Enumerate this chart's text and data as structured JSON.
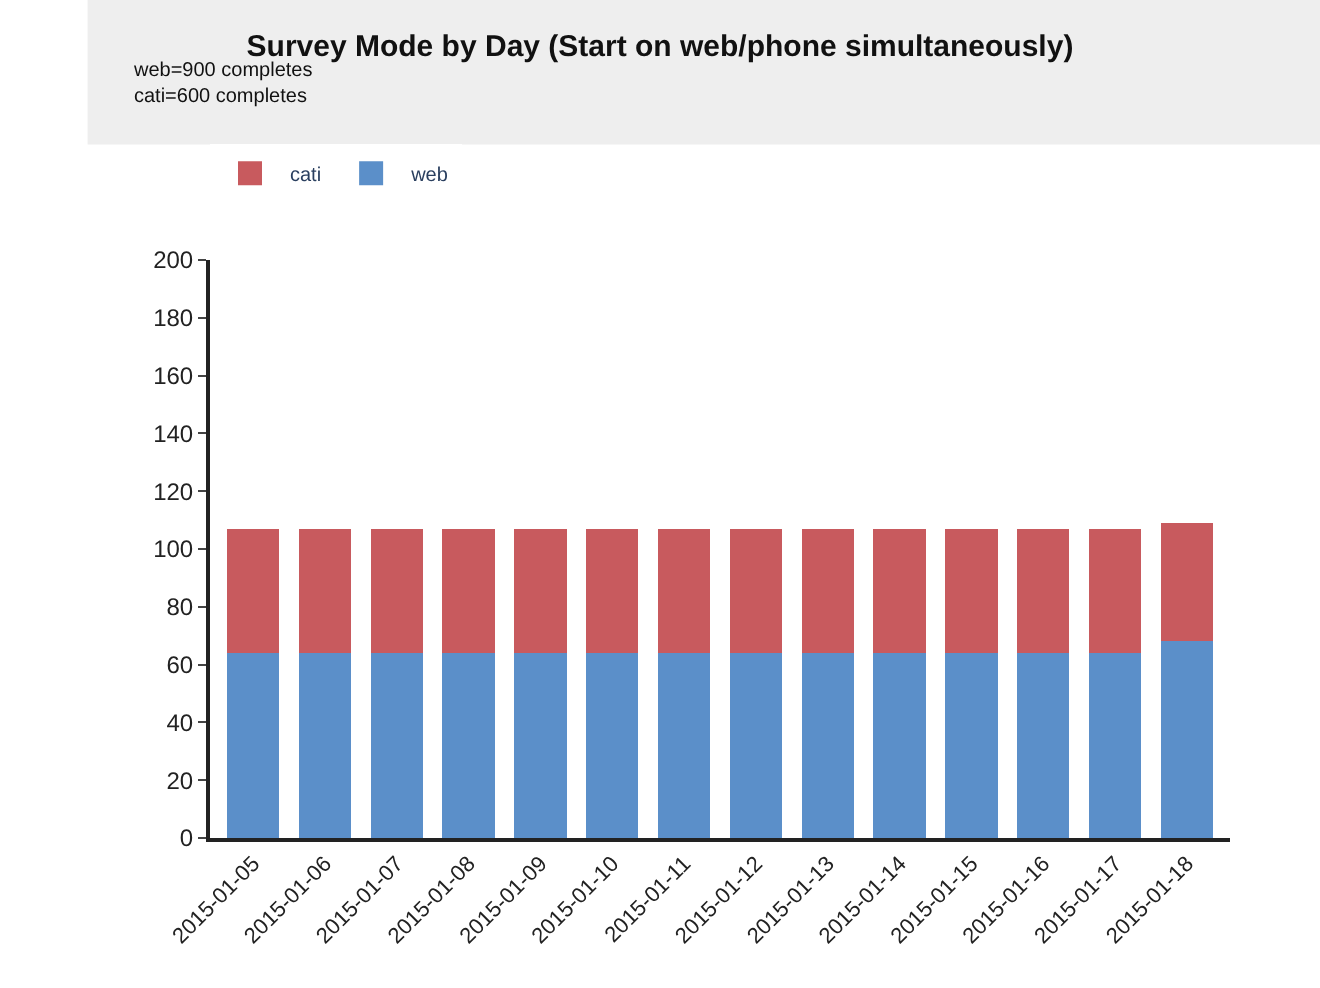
{
  "chart_data": {
    "type": "bar",
    "title": "Survey Mode by Day (Start on web/phone simultaneously)",
    "annotations": [
      "web=900 completes",
      "cati=600 completes"
    ],
    "categories": [
      "2015-01-05",
      "2015-01-06",
      "2015-01-07",
      "2015-01-08",
      "2015-01-09",
      "2015-01-10",
      "2015-01-11",
      "2015-01-12",
      "2015-01-13",
      "2015-01-14",
      "2015-01-15",
      "2015-01-16",
      "2015-01-17",
      "2015-01-18"
    ],
    "stacked": true,
    "series": [
      {
        "name": "web",
        "color": "#5b8fc9",
        "values": [
          64,
          64,
          64,
          64,
          64,
          64,
          64,
          64,
          64,
          64,
          64,
          64,
          64,
          68
        ]
      },
      {
        "name": "cati",
        "color": "#c85a5e",
        "values": [
          43,
          43,
          43,
          43,
          43,
          43,
          43,
          43,
          43,
          43,
          43,
          43,
          43,
          41
        ]
      }
    ],
    "ylim": [
      0,
      200
    ],
    "yticks": [
      0,
      20,
      40,
      60,
      80,
      100,
      120,
      140,
      160,
      180,
      200
    ],
    "legend": "top left",
    "grid": false
  }
}
